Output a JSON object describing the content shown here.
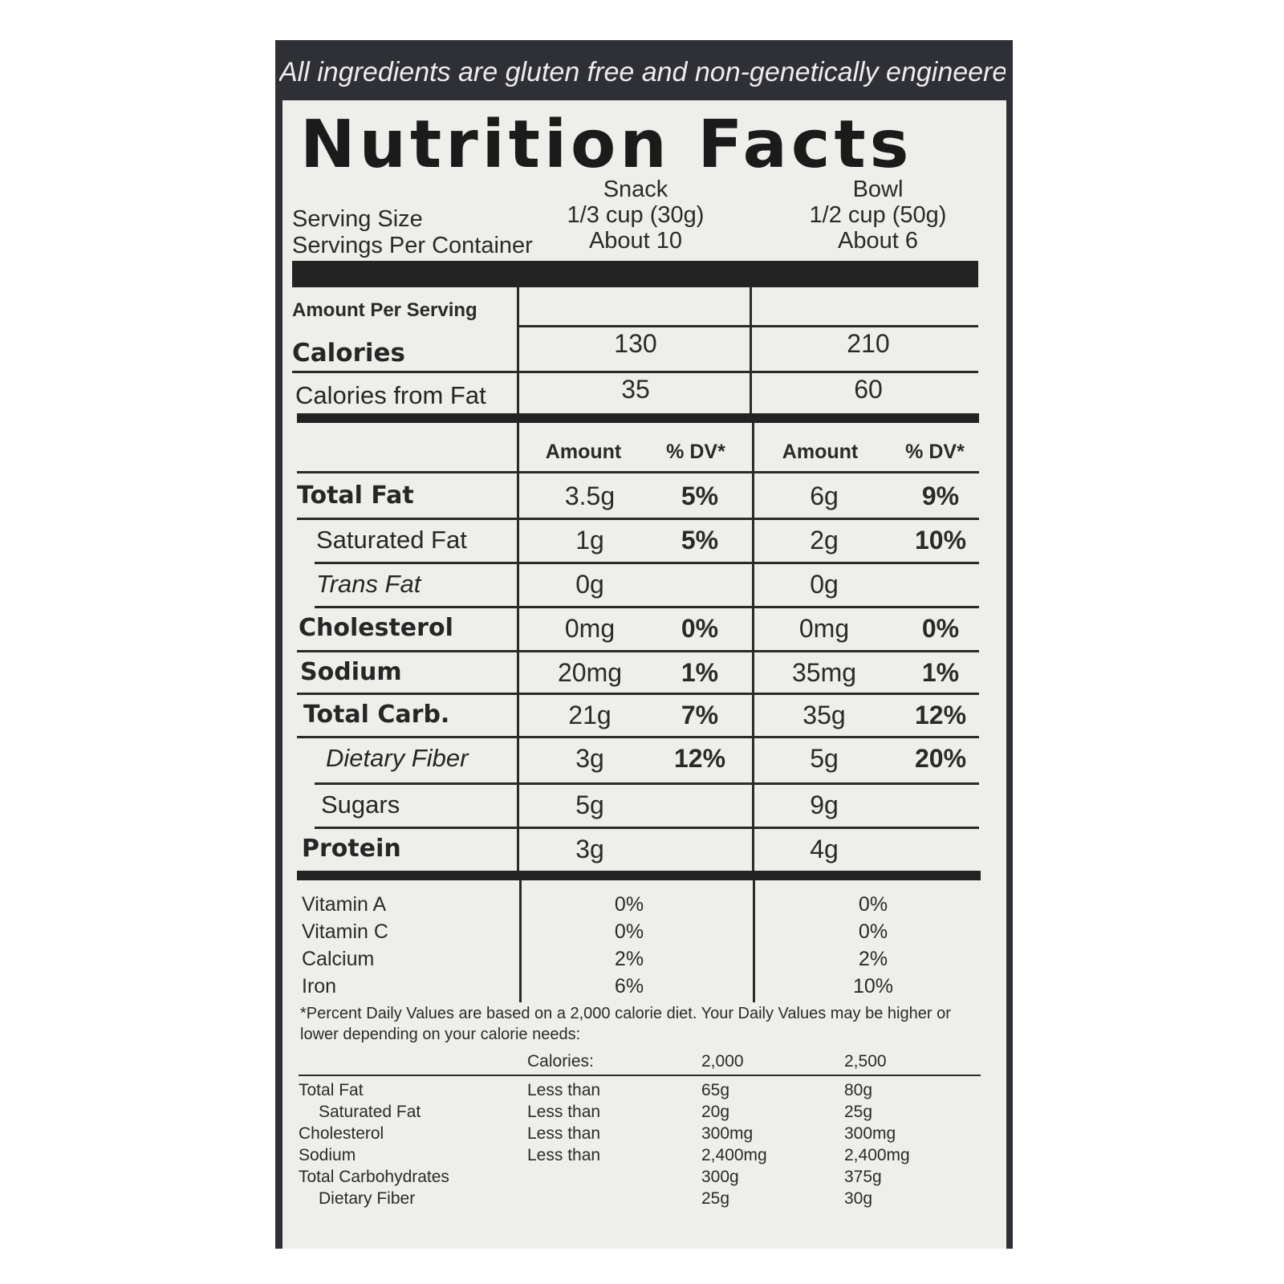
{
  "top_note": "All ingredients are gluten free and non-genetically engineered.",
  "title": "Nutrition Facts",
  "columns": [
    {
      "name": "Snack",
      "serving_size": "1/3 cup (30g)",
      "servings": "About 10"
    },
    {
      "name": "Bowl",
      "serving_size": "1/2 cup (50g)",
      "servings": "About 6"
    }
  ],
  "serving_size_label": "Serving Size",
  "servings_per_container_label": "Servings Per Container",
  "amount_per_serving_label": "Amount Per Serving",
  "calories": {
    "label": "Calories",
    "snack": "130",
    "bowl": "210"
  },
  "calories_from_fat": {
    "label": "Calories from Fat",
    "snack": "35",
    "bowl": "60"
  },
  "amount_header": "Amount",
  "dv_header": "% DV*",
  "nutrients": [
    {
      "label": "Total Fat",
      "snack_amt": "3.5g",
      "snack_dv": "5%",
      "bowl_amt": "6g",
      "bowl_dv": "9%"
    },
    {
      "label": "Saturated Fat",
      "snack_amt": "1g",
      "snack_dv": "5%",
      "bowl_amt": "2g",
      "bowl_dv": "10%"
    },
    {
      "label": "Trans Fat",
      "snack_amt": "0g",
      "snack_dv": "",
      "bowl_amt": "0g",
      "bowl_dv": ""
    },
    {
      "label": "Cholesterol",
      "snack_amt": "0mg",
      "snack_dv": "0%",
      "bowl_amt": "0mg",
      "bowl_dv": "0%"
    },
    {
      "label": "Sodium",
      "snack_amt": "20mg",
      "snack_dv": "1%",
      "bowl_amt": "35mg",
      "bowl_dv": "1%"
    },
    {
      "label": "Total Carb.",
      "snack_amt": "21g",
      "snack_dv": "7%",
      "bowl_amt": "35g",
      "bowl_dv": "12%"
    },
    {
      "label": "Dietary Fiber",
      "snack_amt": "3g",
      "snack_dv": "12%",
      "bowl_amt": "5g",
      "bowl_dv": "20%"
    },
    {
      "label": "Sugars",
      "snack_amt": "5g",
      "snack_dv": "",
      "bowl_amt": "9g",
      "bowl_dv": ""
    },
    {
      "label": "Protein",
      "snack_amt": "3g",
      "snack_dv": "",
      "bowl_amt": "4g",
      "bowl_dv": ""
    }
  ],
  "vitamins": [
    {
      "label": "Vitamin A",
      "snack": "0%",
      "bowl": "0%"
    },
    {
      "label": "Vitamin C",
      "snack": "0%",
      "bowl": "0%"
    },
    {
      "label": "Calcium",
      "snack": "2%",
      "bowl": "2%"
    },
    {
      "label": "Iron",
      "snack": "6%",
      "bowl": "10%"
    }
  ],
  "footnote": "*Percent Daily Values are based on a 2,000 calorie diet. Your Daily Values may be higher or lower depending on your calorie needs:",
  "reference": {
    "calories_label": "Calories:",
    "col_2000": "2,000",
    "col_2500": "2,500",
    "rows": [
      {
        "label": "Total Fat",
        "qual": "Less than",
        "v2000": "65g",
        "v2500": "80g"
      },
      {
        "label": "Saturated Fat",
        "qual": "Less than",
        "v2000": "20g",
        "v2500": "25g"
      },
      {
        "label": "Cholesterol",
        "qual": "Less than",
        "v2000": "300mg",
        "v2500": "300mg"
      },
      {
        "label": "Sodium",
        "qual": "Less than",
        "v2000": "2,400mg",
        "v2500": "2,400mg"
      },
      {
        "label": "Total Carbohydrates",
        "qual": "",
        "v2000": "300g",
        "v2500": "375g"
      },
      {
        "label": "Dietary Fiber",
        "qual": "",
        "v2000": "25g",
        "v2500": "30g"
      }
    ]
  }
}
